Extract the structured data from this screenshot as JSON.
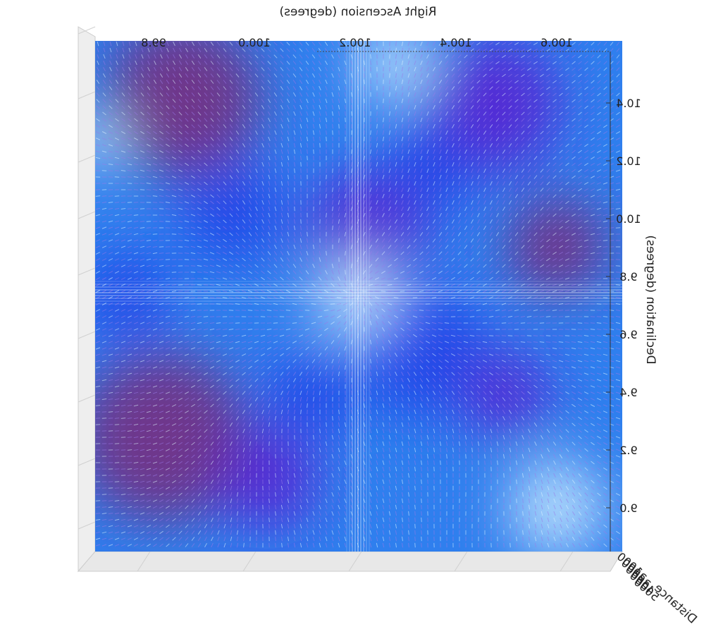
{
  "chart_data": {
    "type": "3d-quiver",
    "mirrored_horizontally": true,
    "x_axis": {
      "label": "Right Ascension (degrees)",
      "ticks": [
        99.8,
        100.0,
        100.2,
        100.4,
        100.6
      ],
      "tick_labels": [
        "99.8",
        "100.0",
        "100.2",
        "100.4",
        "100.6"
      ],
      "range": [
        99.7,
        100.7
      ]
    },
    "y_axis": {
      "label": "Declination (degrees)",
      "ticks": [
        9.0,
        9.2,
        9.4,
        9.6,
        9.8,
        10.0,
        10.2,
        10.4
      ],
      "tick_labels": [
        "9.0",
        "9.2",
        "9.4",
        "9.6",
        "9.8",
        "10.0",
        "10.2",
        "10.4"
      ],
      "range": [
        8.95,
        10.5
      ]
    },
    "z_axis": {
      "label": "Distance",
      "tick_labels": [
        "1000",
        "2000",
        "3000",
        "4000",
        "5000"
      ]
    },
    "colormap": [
      "#cfeeff",
      "#2f8ff0",
      "#1f3fe8",
      "#5a1fd0",
      "#7a2a7a"
    ],
    "grid": true
  }
}
